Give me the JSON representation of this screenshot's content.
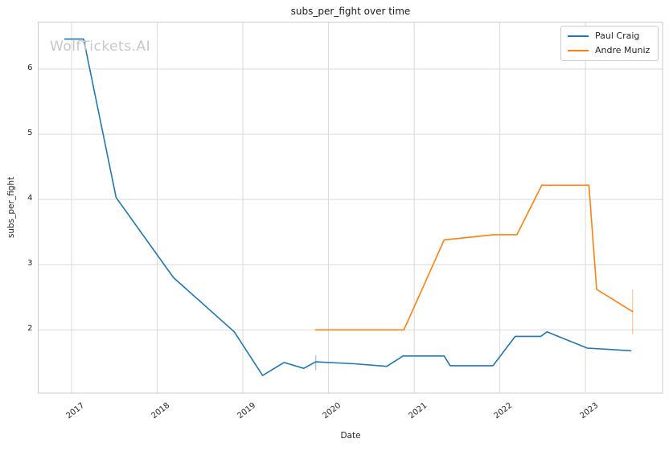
{
  "watermark": "WolfTickets.AI",
  "legend": [
    {
      "label": "Paul Craig",
      "color": "#1f77b4"
    },
    {
      "label": "Andre Muniz",
      "color": "#ff7f0e"
    }
  ],
  "colors": {
    "grid": "#d9d9d9",
    "spine": "#cbcbcb",
    "background": "#ffffff",
    "text": "#262626",
    "watermark": "#c7c7c7"
  },
  "chart_data": {
    "type": "line",
    "title": "subs_per_fight over time",
    "xlabel": "Date",
    "ylabel": "subs_per_fight",
    "xlim": [
      2016.61,
      2023.9
    ],
    "ylim": [
      1.03,
      6.72
    ],
    "xticks": [
      2017,
      2018,
      2019,
      2020,
      2021,
      2022,
      2023
    ],
    "yticks": [
      2,
      3,
      4,
      5,
      6
    ],
    "grid": true,
    "legend_position": "upper right",
    "series": [
      {
        "name": "Paul Craig",
        "color": "#1f77b4",
        "x": [
          2016.92,
          2017.14,
          2017.52,
          2018.19,
          2018.9,
          2019.23,
          2019.48,
          2019.71,
          2019.85,
          2020.3,
          2020.68,
          2020.87,
          2021.35,
          2021.42,
          2021.92,
          2022.18,
          2022.48,
          2022.55,
          2023.02,
          2023.53
        ],
        "y": [
          6.46,
          6.46,
          4.03,
          2.8,
          1.97,
          1.3,
          1.5,
          1.41,
          1.51,
          1.48,
          1.44,
          1.6,
          1.6,
          1.45,
          1.45,
          1.9,
          1.9,
          1.97,
          1.72,
          1.68
        ],
        "error_bar": {
          "x": 2019.85,
          "y_low": 1.38,
          "y_high": 1.61
        }
      },
      {
        "name": "Andre Muniz",
        "color": "#ff7f0e",
        "x": [
          2019.85,
          2020.88,
          2021.35,
          2021.93,
          2022.2,
          2022.49,
          2023.04,
          2023.13,
          2023.55
        ],
        "y": [
          2.0,
          2.0,
          3.38,
          3.46,
          3.46,
          4.22,
          4.22,
          2.62,
          2.28
        ],
        "error_bar": {
          "x": 2023.55,
          "y_low": 1.93,
          "y_high": 2.62
        }
      }
    ]
  }
}
